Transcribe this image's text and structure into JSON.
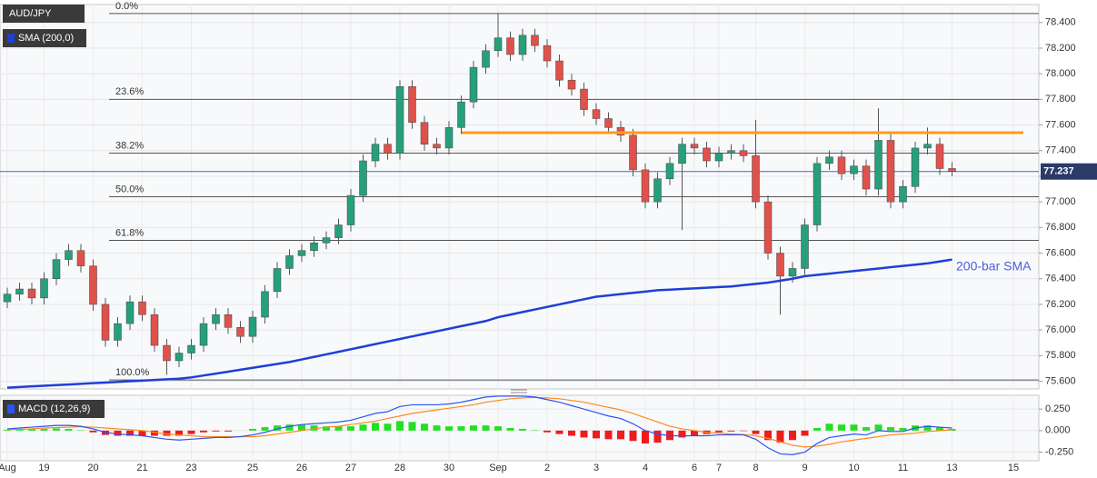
{
  "chart_data": [
    {
      "type": "candlestick",
      "title": "AUD/JPY",
      "indicator_label": "SMA (200,0)",
      "categories": [
        "Aug",
        null,
        null,
        "19",
        null,
        null,
        null,
        "20",
        null,
        null,
        null,
        "21",
        null,
        null,
        null,
        "23",
        null,
        null,
        null,
        null,
        "25",
        null,
        null,
        null,
        "26",
        null,
        null,
        null,
        "27",
        null,
        null,
        null,
        "28",
        null,
        null,
        null,
        "30",
        null,
        null,
        null,
        "Sep",
        null,
        null,
        null,
        "2",
        null,
        null,
        null,
        "3",
        null,
        null,
        null,
        "4",
        null,
        null,
        null,
        "6",
        null,
        "7",
        null,
        null,
        "8",
        null,
        null,
        null,
        "9",
        null,
        null,
        null,
        "10",
        null,
        null,
        null,
        "11",
        null,
        null,
        null,
        "13",
        null,
        null,
        null,
        null,
        "15"
      ],
      "open": [
        76.22,
        76.28,
        76.32,
        76.25,
        76.4,
        76.55,
        76.62,
        76.5,
        76.2,
        75.92,
        76.05,
        76.22,
        76.12,
        75.88,
        75.76,
        75.82,
        75.88,
        76.05,
        76.12,
        76.02,
        75.95,
        76.1,
        76.3,
        76.48,
        76.58,
        76.62,
        76.68,
        76.72,
        76.82,
        77.05,
        77.32,
        77.45,
        77.38,
        77.9,
        77.62,
        77.45,
        77.42,
        77.58,
        77.78,
        78.05,
        78.18,
        78.28,
        78.15,
        78.3,
        78.22,
        78.1,
        77.95,
        77.88,
        77.72,
        77.65,
        77.58,
        77.52,
        77.25,
        77.0,
        77.18,
        77.3,
        77.45,
        77.42,
        77.32,
        77.38,
        77.4,
        77.36,
        77.0,
        76.6,
        76.42,
        76.48,
        76.82,
        77.3,
        77.35,
        77.22,
        77.28,
        77.1,
        77.48,
        77.0,
        77.12,
        77.42,
        77.45,
        77.26,
        null,
        null,
        null,
        null,
        null
      ],
      "high": [
        76.33,
        76.37,
        76.37,
        76.45,
        76.6,
        76.67,
        76.67,
        76.55,
        76.25,
        76.1,
        76.27,
        76.27,
        76.17,
        75.93,
        75.87,
        75.93,
        76.1,
        76.17,
        76.17,
        76.07,
        76.15,
        76.35,
        76.53,
        76.63,
        76.67,
        76.73,
        76.77,
        76.87,
        77.1,
        77.37,
        77.5,
        77.5,
        77.95,
        77.95,
        77.67,
        77.5,
        77.63,
        77.83,
        78.1,
        78.23,
        78.47,
        78.33,
        78.35,
        78.35,
        78.27,
        78.15,
        78.0,
        77.93,
        77.77,
        77.7,
        77.63,
        77.57,
        77.3,
        77.23,
        77.35,
        77.5,
        77.5,
        77.47,
        77.43,
        77.45,
        77.45,
        77.64,
        77.05,
        76.65,
        76.53,
        76.87,
        77.35,
        77.4,
        77.4,
        77.33,
        77.33,
        77.73,
        77.53,
        77.17,
        77.47,
        77.58,
        77.5,
        77.31,
        null,
        null,
        null,
        null,
        null
      ],
      "low": [
        76.17,
        76.23,
        76.2,
        76.2,
        76.35,
        76.5,
        76.45,
        76.15,
        75.87,
        75.87,
        76.0,
        76.07,
        75.83,
        75.65,
        75.71,
        75.77,
        75.83,
        76.0,
        75.97,
        75.9,
        75.9,
        76.05,
        76.25,
        76.43,
        76.53,
        76.57,
        76.63,
        76.67,
        76.77,
        77.0,
        77.27,
        77.33,
        77.33,
        77.57,
        77.4,
        77.37,
        77.37,
        77.53,
        77.73,
        78.0,
        78.13,
        78.1,
        78.1,
        78.17,
        78.05,
        77.9,
        77.83,
        77.67,
        77.6,
        77.53,
        77.47,
        77.2,
        76.95,
        76.95,
        77.13,
        76.78,
        77.37,
        77.27,
        77.27,
        77.33,
        77.31,
        76.95,
        76.55,
        76.12,
        76.37,
        76.43,
        76.77,
        77.25,
        77.17,
        77.17,
        77.05,
        77.05,
        76.95,
        76.95,
        77.07,
        77.37,
        77.21,
        77.2,
        null,
        null,
        null,
        null,
        null
      ],
      "close": [
        76.28,
        76.32,
        76.25,
        76.4,
        76.55,
        76.62,
        76.5,
        76.2,
        75.92,
        76.05,
        76.22,
        76.12,
        75.88,
        75.76,
        75.82,
        75.88,
        76.05,
        76.12,
        76.02,
        75.95,
        76.1,
        76.3,
        76.48,
        76.58,
        76.62,
        76.68,
        76.72,
        76.82,
        77.05,
        77.32,
        77.45,
        77.38,
        77.9,
        77.62,
        77.45,
        77.42,
        77.58,
        77.78,
        78.05,
        78.18,
        78.28,
        78.15,
        78.3,
        78.22,
        78.1,
        77.95,
        77.88,
        77.72,
        77.65,
        77.58,
        77.52,
        77.25,
        77.0,
        77.18,
        77.3,
        77.45,
        77.42,
        77.32,
        77.38,
        77.4,
        77.36,
        77.0,
        76.6,
        76.42,
        76.48,
        76.82,
        77.3,
        77.35,
        77.22,
        77.28,
        77.1,
        77.48,
        77.0,
        77.12,
        77.42,
        77.45,
        77.26,
        77.237,
        null,
        null,
        null,
        null,
        null
      ],
      "up_color": "#26a07a",
      "down_color": "#e0514b",
      "series": [
        {
          "name": "200-bar SMA",
          "color": "#1f3fd6",
          "values": [
            75.55,
            75.555,
            75.56,
            75.565,
            75.57,
            75.575,
            75.58,
            75.585,
            75.59,
            75.595,
            75.6,
            75.605,
            75.61,
            75.615,
            75.62,
            75.63,
            75.645,
            75.66,
            75.675,
            75.69,
            75.705,
            75.72,
            75.735,
            75.75,
            75.77,
            75.79,
            75.81,
            75.83,
            75.85,
            75.87,
            75.89,
            75.91,
            75.93,
            75.95,
            75.97,
            75.99,
            76.01,
            76.03,
            76.05,
            76.07,
            76.1,
            76.12,
            76.14,
            76.16,
            76.18,
            76.2,
            76.22,
            76.24,
            76.26,
            76.27,
            76.28,
            76.29,
            76.3,
            76.31,
            76.315,
            76.32,
            76.325,
            76.33,
            76.335,
            76.34,
            76.35,
            76.36,
            76.37,
            76.385,
            76.4,
            76.42,
            76.43,
            76.44,
            76.45,
            76.46,
            76.47,
            76.48,
            76.49,
            76.5,
            76.51,
            76.52,
            76.535,
            76.55,
            null,
            null,
            null,
            null,
            null
          ]
        }
      ],
      "fib_levels": [
        {
          "label": "0.0%",
          "value": 78.47
        },
        {
          "label": "23.6%",
          "value": 77.8
        },
        {
          "label": "38.2%",
          "value": 77.38
        },
        {
          "label": "50.0%",
          "value": 77.04
        },
        {
          "label": "61.8%",
          "value": 76.7
        },
        {
          "label": "100.0%",
          "value": 75.61
        }
      ],
      "resistance": {
        "value": 77.54,
        "color": "#ff9a1a"
      },
      "last_price": 77.237,
      "ylim": [
        75.54,
        78.54
      ],
      "yticks": [
        {
          "value": 75.6,
          "label": "75.600"
        },
        {
          "value": 75.8,
          "label": "75.800"
        },
        {
          "value": 76.0,
          "label": "76.000"
        },
        {
          "value": 76.2,
          "label": "76.200"
        },
        {
          "value": 76.4,
          "label": "76.400"
        },
        {
          "value": 76.6,
          "label": "76.600"
        },
        {
          "value": 76.8,
          "label": "76.800"
        },
        {
          "value": 77.0,
          "label": "77.000"
        },
        {
          "value": 77.2,
          "label": "77.200"
        },
        {
          "value": 77.4,
          "label": "77.400"
        },
        {
          "value": 77.6,
          "label": "77.600"
        },
        {
          "value": 77.8,
          "label": "77.800"
        },
        {
          "value": 78.0,
          "label": "78.000"
        },
        {
          "value": 78.2,
          "label": "78.200"
        },
        {
          "value": 78.4,
          "label": "78.400"
        }
      ],
      "grid": true
    },
    {
      "type": "macd",
      "title": "MACD (12,26,9)",
      "macd": [
        0.02,
        0.03,
        0.04,
        0.05,
        0.06,
        0.06,
        0.05,
        0.02,
        -0.02,
        -0.04,
        -0.05,
        -0.06,
        -0.08,
        -0.1,
        -0.11,
        -0.1,
        -0.09,
        -0.08,
        -0.08,
        -0.07,
        -0.05,
        -0.02,
        0.02,
        0.05,
        0.07,
        0.08,
        0.09,
        0.1,
        0.12,
        0.16,
        0.2,
        0.22,
        0.28,
        0.3,
        0.3,
        0.3,
        0.31,
        0.33,
        0.36,
        0.39,
        0.4,
        0.4,
        0.4,
        0.39,
        0.36,
        0.33,
        0.29,
        0.25,
        0.21,
        0.17,
        0.14,
        0.08,
        0.0,
        -0.04,
        -0.06,
        -0.06,
        -0.06,
        -0.06,
        -0.05,
        -0.05,
        -0.05,
        -0.1,
        -0.2,
        -0.27,
        -0.28,
        -0.25,
        -0.15,
        -0.08,
        -0.06,
        -0.04,
        -0.05,
        0.0,
        -0.01,
        -0.01,
        0.03,
        0.05,
        0.04,
        0.03,
        null,
        null,
        null,
        null,
        null
      ],
      "signal": [
        0.01,
        0.015,
        0.02,
        0.03,
        0.035,
        0.04,
        0.045,
        0.04,
        0.03,
        0.02,
        0.01,
        0.0,
        -0.02,
        -0.04,
        -0.05,
        -0.06,
        -0.07,
        -0.07,
        -0.07,
        -0.07,
        -0.07,
        -0.06,
        -0.04,
        -0.02,
        0.0,
        0.02,
        0.04,
        0.05,
        0.07,
        0.09,
        0.11,
        0.14,
        0.17,
        0.2,
        0.22,
        0.24,
        0.26,
        0.28,
        0.3,
        0.33,
        0.35,
        0.37,
        0.38,
        0.385,
        0.38,
        0.37,
        0.35,
        0.33,
        0.3,
        0.27,
        0.24,
        0.2,
        0.15,
        0.1,
        0.05,
        0.02,
        0.0,
        -0.02,
        -0.03,
        -0.04,
        -0.045,
        -0.06,
        -0.09,
        -0.13,
        -0.17,
        -0.19,
        -0.18,
        -0.16,
        -0.13,
        -0.11,
        -0.09,
        -0.07,
        -0.05,
        -0.04,
        -0.03,
        -0.01,
        0.0,
        0.01,
        null,
        null,
        null,
        null,
        null
      ],
      "histogram": [
        0.01,
        0.015,
        0.02,
        0.02,
        0.025,
        0.02,
        0.005,
        -0.02,
        -0.05,
        -0.06,
        -0.06,
        -0.06,
        -0.06,
        -0.06,
        -0.06,
        -0.04,
        -0.02,
        -0.01,
        -0.01,
        0.0,
        0.02,
        0.04,
        0.06,
        0.07,
        0.07,
        0.06,
        0.05,
        0.05,
        0.05,
        0.07,
        0.09,
        0.08,
        0.11,
        0.1,
        0.08,
        0.06,
        0.05,
        0.05,
        0.06,
        0.06,
        0.05,
        0.03,
        0.02,
        0.005,
        -0.02,
        -0.04,
        -0.06,
        -0.08,
        -0.09,
        -0.1,
        -0.1,
        -0.12,
        -0.15,
        -0.14,
        -0.11,
        -0.08,
        -0.06,
        -0.04,
        -0.02,
        -0.01,
        -0.005,
        -0.04,
        -0.11,
        -0.14,
        -0.11,
        -0.06,
        0.03,
        0.08,
        0.07,
        0.07,
        0.04,
        0.07,
        0.04,
        0.03,
        0.06,
        0.06,
        0.04,
        0.02,
        null,
        null,
        null,
        null,
        null
      ],
      "macd_color": "#2a55f0",
      "signal_color": "#ff8a1e",
      "positive_color": "#22e022",
      "negative_color": "#ee1c1c",
      "ylim": [
        -0.35,
        0.41
      ],
      "yticks": [
        {
          "value": -0.25,
          "label": "-0.250"
        },
        {
          "value": 0,
          "label": "0.000"
        },
        {
          "value": 0.25,
          "label": "0.250"
        }
      ],
      "grid": true
    }
  ]
}
